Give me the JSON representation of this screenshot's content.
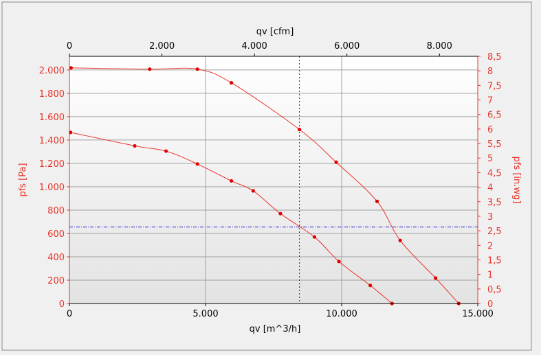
{
  "colors": {
    "background": "#f0f0f0",
    "plot_bg_top": "#ffffff",
    "plot_bg_bottom": "#e3e3e3",
    "left_axis": "#e8332a",
    "right_axis": "#e8332a",
    "bottom_axis": "#000000",
    "top_axis": "#000000",
    "grid": "#a0a0a0",
    "curve": "#e8332a",
    "point": "#e00000",
    "crosshair": "#1a1ad8"
  },
  "chart_data": {
    "type": "line",
    "x_axis": {
      "label": "qv [m^3/h]",
      "range": [
        0,
        15000
      ],
      "ticks": [
        0,
        5000,
        10000,
        15000
      ],
      "tick_labels": [
        "0",
        "5.000",
        "10.000",
        "15.000"
      ]
    },
    "x2_axis": {
      "label": "qv [cfm]",
      "range": [
        0,
        8828.7
      ],
      "ticks": [
        0,
        2000,
        4000,
        6000,
        8000
      ],
      "tick_labels": [
        "0",
        "2.000",
        "4.000",
        "6.000",
        "8.000"
      ]
    },
    "y_axis": {
      "label": "pfs [Pa]",
      "range": [
        0,
        2117
      ],
      "ticks": [
        0,
        200,
        400,
        600,
        800,
        1000,
        1200,
        1400,
        1600,
        1800,
        2000
      ],
      "tick_labels": [
        "0",
        "200",
        "400",
        "600",
        "800",
        "1.000",
        "1.200",
        "1.400",
        "1.600",
        "1.800",
        "2.000"
      ]
    },
    "y2_axis": {
      "label": "pfs [in.wg]",
      "range": [
        0,
        8.5
      ],
      "ticks": [
        0,
        0.5,
        1,
        1.5,
        2,
        2.5,
        3,
        3.5,
        4,
        4.5,
        5,
        5.5,
        6,
        6.5,
        7,
        7.5,
        8,
        8.5
      ],
      "tick_labels": [
        "0",
        "0,5",
        "1",
        "1,5",
        "2",
        "2,5",
        "3",
        "3,5",
        "4",
        "4,5",
        "5",
        "5,5",
        "6",
        "6,5",
        "7",
        "7,5",
        "8",
        "8,5"
      ]
    },
    "grid": true,
    "series": [
      {
        "x": [
          60,
          2950,
          4700,
          5950,
          8450,
          9800,
          11300,
          12150,
          13450,
          14300
        ],
        "y": [
          2018,
          2007,
          2007,
          1890,
          1490,
          1210,
          875,
          540,
          218,
          0
        ]
      },
      {
        "x": [
          40,
          2400,
          3550,
          4700,
          5950,
          6750,
          7750,
          9000,
          9900,
          11050,
          11850
        ],
        "y": [
          1465,
          1350,
          1305,
          1195,
          1050,
          965,
          770,
          570,
          360,
          155,
          0
        ]
      }
    ],
    "crosshair": {
      "x": 8450,
      "y": 655
    }
  }
}
